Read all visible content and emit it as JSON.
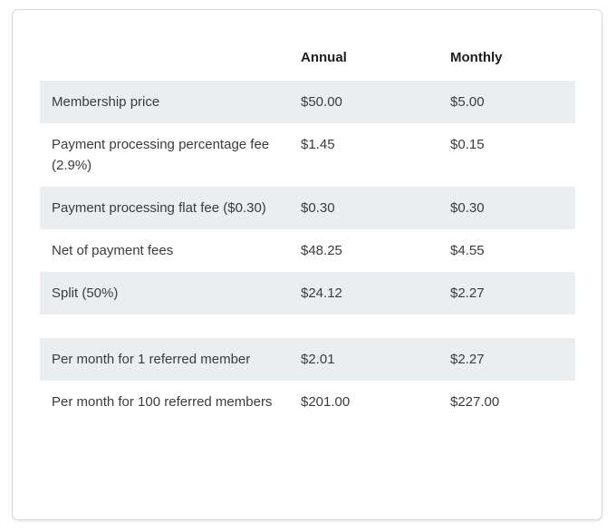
{
  "chart_data": {
    "type": "table",
    "columns": [
      "",
      "Annual",
      "Monthly"
    ],
    "rows": [
      [
        "Membership price",
        "$50.00",
        "$5.00"
      ],
      [
        "Payment processing percentage fee (2.9%)",
        "$1.45",
        "$0.15"
      ],
      [
        "Payment processing flat fee ($0.30)",
        "$0.30",
        "$0.30"
      ],
      [
        "Net of payment fees",
        "$48.25",
        "$4.55"
      ],
      [
        "Split (50%)",
        "$24.12",
        "$2.27"
      ],
      [
        "",
        "",
        ""
      ],
      [
        "Per month for 1 referred member",
        "$2.01",
        "$2.27"
      ],
      [
        "Per month for 100 referred members",
        "$201.00",
        "$227.00"
      ]
    ],
    "layout_hints": {
      "shaded_row_indices": [
        0,
        2,
        4,
        6
      ],
      "spacer_row_index": 5,
      "value_alignment": "top-left"
    }
  },
  "colors": {
    "row_shade": "#ebeef0",
    "card_border": "#d9dadb",
    "text": "#3b3b3b",
    "header_text": "#1e1e1e",
    "page_background": "#ffffff"
  }
}
